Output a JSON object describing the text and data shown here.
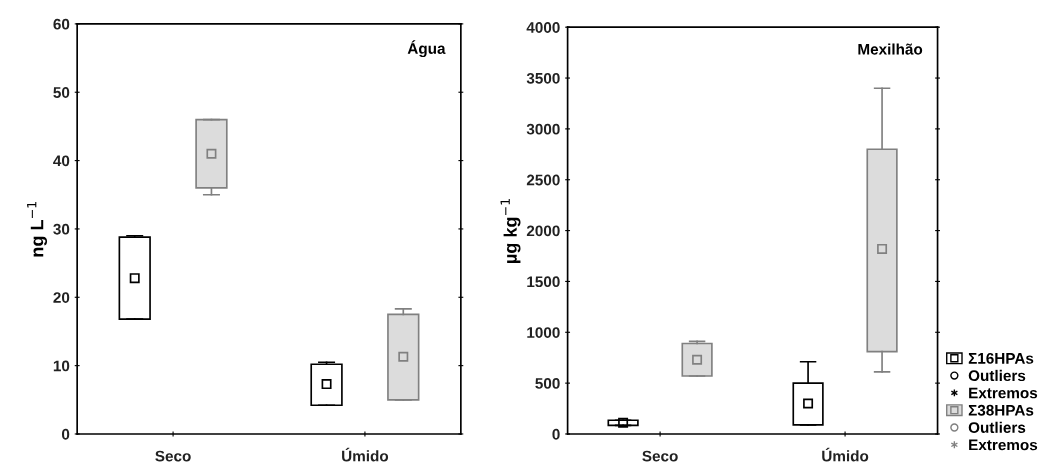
{
  "chart_data": [
    {
      "type": "box",
      "ylabel": "ng L$^{−1}$",
      "annotations": [
        "Água"
      ],
      "categories": [
        "Seco",
        "Úmido"
      ],
      "ylim": [
        0,
        60
      ],
      "yticks": [
        0,
        10,
        20,
        30,
        40,
        50,
        60
      ],
      "grid": false,
      "legend": false,
      "series": [
        {
          "color": "#ffffff",
          "boxes": [
            {
              "low": 16.8,
              "q1": 16.8,
              "median": 22.8,
              "q3": 28.8,
              "high": 29
            },
            {
              "low": 4.2,
              "q1": 4.2,
              "median": 7.3,
              "q3": 10.2,
              "high": 10.5
            }
          ]
        },
        {
          "color": "#dcdcdc",
          "boxes": [
            {
              "low": 35,
              "q1": 36,
              "median": 41,
              "q3": 46,
              "high": 46
            },
            {
              "low": 5,
              "q1": 5,
              "median": 11.3,
              "q3": 17.5,
              "high": 18.3
            }
          ]
        }
      ]
    },
    {
      "type": "box",
      "ylabel": "µg kg$^{−1}$",
      "annotations": [
        "Mexilhão"
      ],
      "categories": [
        "Seco",
        "Úmido"
      ],
      "ylim": [
        0,
        4000
      ],
      "yticks": [
        0,
        500,
        1000,
        1500,
        2000,
        2500,
        3000,
        3500,
        4000
      ],
      "grid": false,
      "legend": "bottom right",
      "series": [
        {
          "name": "Σ16HPAs",
          "color": "#ffffff",
          "boxes": [
            {
              "low": 85,
              "q1": 85,
              "median": 110,
              "q3": 135,
              "high": 135
            },
            {
              "low": 90,
              "q1": 90,
              "median": 300,
              "q3": 500,
              "high": 710
            }
          ]
        },
        {
          "name": "Outliers",
          "type": "scatter",
          "marker": "circle",
          "color": "#000000",
          "values": [
            null,
            null
          ]
        },
        {
          "name": "Extremos",
          "type": "scatter",
          "marker": "star",
          "color": "#000000",
          "values": [
            null,
            null
          ]
        },
        {
          "name": "Σ38HPAs",
          "color": "#dcdcdc",
          "boxes": [
            {
              "low": 570,
              "q1": 570,
              "median": 730,
              "q3": 890,
              "high": 910
            },
            {
              "low": 610,
              "q1": 810,
              "median": 1820,
              "q3": 2800,
              "high": 3400
            }
          ]
        },
        {
          "name": "Outliers",
          "type": "scatter",
          "marker": "circle",
          "color": "#808080",
          "values": [
            null,
            null
          ]
        },
        {
          "name": "Extremos",
          "type": "scatter",
          "marker": "star",
          "color": "#808080",
          "values": [
            null,
            null
          ]
        }
      ]
    }
  ]
}
